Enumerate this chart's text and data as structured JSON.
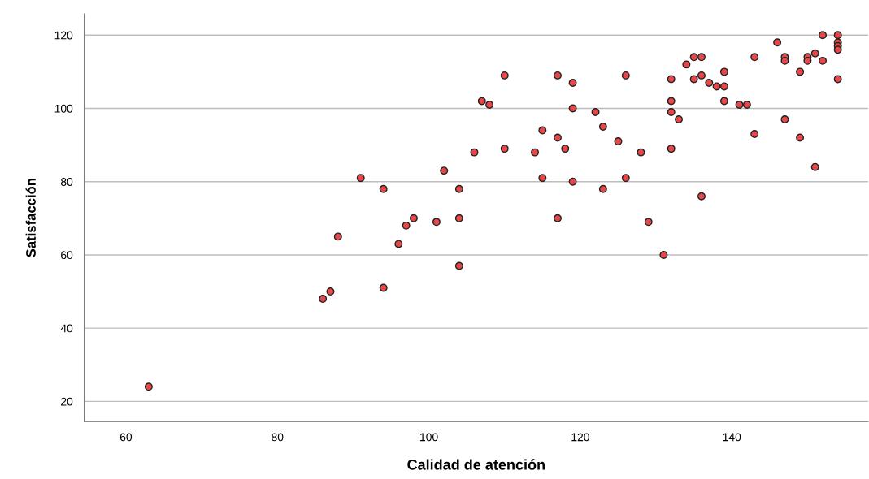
{
  "chart_data": {
    "type": "scatter",
    "xlabel": "Calidad de atención",
    "ylabel": "Satisfacción",
    "x": [
      63,
      86,
      87,
      88,
      91,
      94,
      94,
      96,
      97,
      98,
      101,
      102,
      104,
      104,
      104,
      106,
      107,
      108,
      110,
      110,
      114,
      115,
      115,
      117,
      117,
      117,
      118,
      119,
      119,
      119,
      122,
      123,
      123,
      125,
      126,
      126,
      128,
      129,
      131,
      132,
      132,
      132,
      132,
      133,
      134,
      135,
      135,
      136,
      136,
      136,
      137,
      138,
      139,
      139,
      139,
      141,
      142,
      143,
      143,
      146,
      147,
      147,
      147,
      149,
      149,
      150,
      150,
      151,
      151,
      152,
      152,
      154,
      154,
      154,
      154,
      154
    ],
    "series": [
      {
        "color": "#e8474a",
        "values": [
          24,
          48,
          50,
          65,
          81,
          51,
          78,
          63,
          68,
          70,
          69,
          83,
          57,
          70,
          78,
          88,
          102,
          101,
          109,
          89,
          88,
          94,
          81,
          70,
          92,
          109,
          89,
          107,
          100,
          80,
          99,
          95,
          78,
          91,
          109,
          81,
          88,
          69,
          60,
          108,
          102,
          99,
          89,
          97,
          112,
          108,
          114,
          109,
          114,
          76,
          107,
          106,
          110,
          106,
          102,
          101,
          101,
          114,
          93,
          118,
          114,
          113,
          97,
          110,
          92,
          114,
          113,
          115,
          84,
          120,
          113,
          120,
          118,
          117,
          116,
          108
        ]
      }
    ],
    "xlim": [
      54.5,
      158
    ],
    "ylim": [
      14.5,
      125.8
    ],
    "xticks": [
      60,
      80,
      100,
      120,
      140
    ],
    "yticks": [
      20,
      40,
      60,
      80,
      100,
      120
    ],
    "grid": "y",
    "marker": "circle"
  }
}
